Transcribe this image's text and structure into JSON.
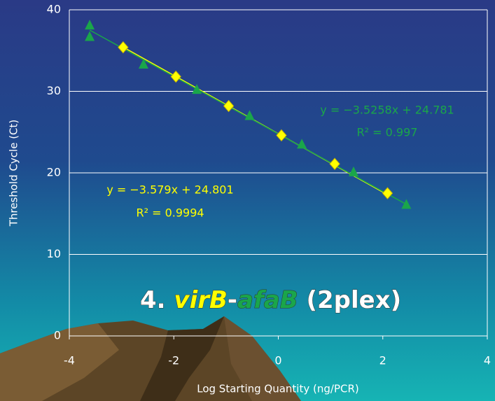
{
  "chart_data": {
    "type": "scatter",
    "title_parts": [
      "4.",
      "virB",
      "-",
      "afaB",
      "(2plex)"
    ],
    "x_label": "Log Starting Quantity (ng/PCR)",
    "y_label": "Threshold Cycle (Ct)",
    "xlim": [
      -4,
      4
    ],
    "xticks": [
      -4,
      -2,
      0,
      2,
      4
    ],
    "ylim": [
      0,
      40
    ],
    "yticks": [
      0,
      10,
      20,
      30,
      40
    ],
    "grid": true,
    "series": [
      {
        "name": "virB",
        "color": "#ffff00",
        "marker": "diamond",
        "x": [
          -2.97,
          -1.96,
          -0.95,
          0.06,
          1.08,
          2.09
        ],
        "values": [
          35.4,
          31.8,
          28.2,
          24.6,
          21.1,
          17.5
        ],
        "slope": -3.579,
        "intercept": 24.801,
        "equation": "y = −3.579x + 24.801",
        "r2": "R² = 0.9994"
      },
      {
        "name": "afaB",
        "color": "#1aa64a",
        "marker": "triangle",
        "x": [
          -3.61,
          -3.61,
          -2.58,
          -1.56,
          -0.55,
          0.45,
          1.44,
          2.45
        ],
        "values": [
          38.1,
          36.7,
          33.3,
          30.2,
          27.0,
          23.5,
          20.1,
          16.1
        ],
        "slope": -3.5258,
        "intercept": 24.781,
        "equation": "y = −3.5258x + 24.781",
        "r2": "R² = 0.997"
      }
    ]
  }
}
